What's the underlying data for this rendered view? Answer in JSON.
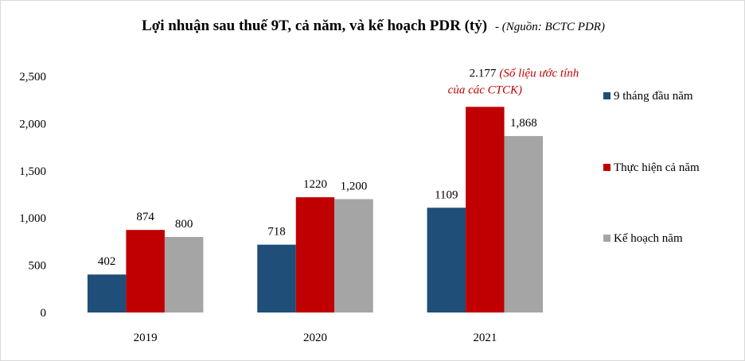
{
  "chart_data": {
    "type": "bar",
    "title": "Lợi nhuận sau thuế 9T, cả năm, và kế hoạch PDR (tỷ)",
    "subtitle": "- (Nguồn: BCTC PDR)",
    "categories": [
      "2019",
      "2020",
      "2021"
    ],
    "series": [
      {
        "name": "9 tháng đầu năm",
        "values": [
          402,
          718,
          1109
        ],
        "labels": [
          "402",
          "718",
          "1109"
        ],
        "color": "#1f4e79"
      },
      {
        "name": "Thực hiện cả năm",
        "values": [
          874,
          1220,
          2177
        ],
        "labels": [
          "874",
          "1220",
          "2.177"
        ],
        "color": "#c00000"
      },
      {
        "name": "Kế hoạch năm",
        "values": [
          800,
          1200,
          1868
        ],
        "labels": [
          "800",
          "1,200",
          "1,868"
        ],
        "color": "#a5a5a5"
      }
    ],
    "yticks": [
      "0",
      "500",
      "1,000",
      "1,500",
      "2,000",
      "2,500"
    ],
    "ylim": [
      0,
      2500
    ],
    "grid": false,
    "legend_position": "right",
    "annotation": {
      "line1": "(Số liệu ước tính",
      "line2": "của các CTCK)",
      "color": "#c00000"
    }
  }
}
